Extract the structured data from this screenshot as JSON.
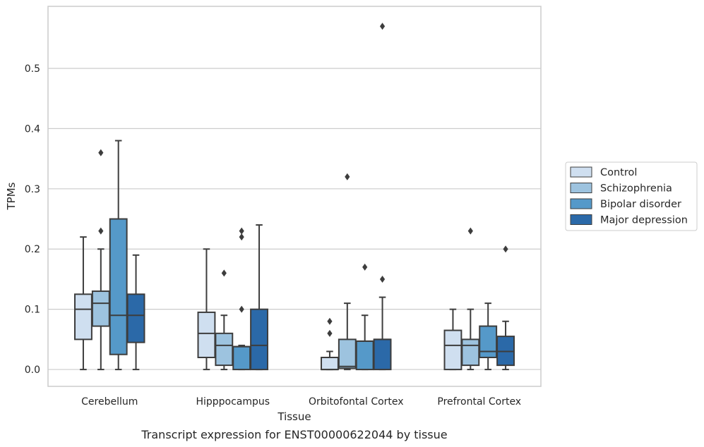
{
  "chart_data": {
    "type": "box",
    "xlabel": "Tissue",
    "ylabel": "TPMs",
    "caption": "Transcript expression for ENST00000622044 by tissue",
    "categories": [
      "Cerebellum",
      "Hipppocampus",
      "Orbitofontal Cortex",
      "Prefrontal Cortex"
    ],
    "ylim": [
      -0.028,
      0.603
    ],
    "yticks": [
      0.0,
      0.1,
      0.2,
      0.3,
      0.4,
      0.5
    ],
    "ytick_labels": [
      "0.0",
      "0.1",
      "0.2",
      "0.3",
      "0.4",
      "0.5"
    ],
    "grid": "horizontal",
    "legend_position": "right",
    "series": [
      {
        "name": "Control",
        "color": "#cfdff0",
        "boxes": [
          {
            "whislo": 0.0,
            "q1": 0.05,
            "med": 0.1,
            "q3": 0.125,
            "whishi": 0.22,
            "fliers": []
          },
          {
            "whislo": 0.0,
            "q1": 0.02,
            "med": 0.06,
            "q3": 0.095,
            "whishi": 0.2,
            "fliers": []
          },
          {
            "whislo": 0.0,
            "q1": 0.0,
            "med": 0.0,
            "q3": 0.02,
            "whishi": 0.03,
            "fliers": [
              0.06,
              0.08
            ]
          },
          {
            "whislo": 0.0,
            "q1": 0.0,
            "med": 0.04,
            "q3": 0.065,
            "whishi": 0.1,
            "fliers": []
          }
        ]
      },
      {
        "name": "Schizophrenia",
        "color": "#9dc3df",
        "boxes": [
          {
            "whislo": 0.0,
            "q1": 0.072,
            "med": 0.11,
            "q3": 0.13,
            "whishi": 0.2,
            "fliers": [
              0.23,
              0.36
            ]
          },
          {
            "whislo": 0.0,
            "q1": 0.007,
            "med": 0.04,
            "q3": 0.06,
            "whishi": 0.09,
            "fliers": [
              0.16
            ]
          },
          {
            "whislo": 0.0,
            "q1": 0.002,
            "med": 0.005,
            "q3": 0.05,
            "whishi": 0.11,
            "fliers": [
              0.32
            ]
          },
          {
            "whislo": 0.0,
            "q1": 0.007,
            "med": 0.04,
            "q3": 0.05,
            "whishi": 0.1,
            "fliers": [
              0.23
            ]
          }
        ]
      },
      {
        "name": "Bipolar disorder",
        "color": "#5599c9",
        "boxes": [
          {
            "whislo": 0.0,
            "q1": 0.025,
            "med": 0.09,
            "q3": 0.25,
            "whishi": 0.38,
            "fliers": []
          },
          {
            "whislo": 0.0,
            "q1": 0.0,
            "med": 0.038,
            "q3": 0.038,
            "whishi": 0.04,
            "fliers": [
              0.1,
              0.22,
              0.23
            ]
          },
          {
            "whislo": 0.0,
            "q1": 0.0,
            "med": 0.047,
            "q3": 0.047,
            "whishi": 0.09,
            "fliers": [
              0.17
            ]
          },
          {
            "whislo": 0.0,
            "q1": 0.02,
            "med": 0.03,
            "q3": 0.072,
            "whishi": 0.11,
            "fliers": []
          }
        ]
      },
      {
        "name": "Major depression",
        "color": "#2b69a8",
        "boxes": [
          {
            "whislo": 0.0,
            "q1": 0.045,
            "med": 0.09,
            "q3": 0.125,
            "whishi": 0.19,
            "fliers": []
          },
          {
            "whislo": 0.0,
            "q1": 0.0,
            "med": 0.04,
            "q3": 0.1,
            "whishi": 0.24,
            "fliers": []
          },
          {
            "whislo": 0.0,
            "q1": 0.0,
            "med": 0.05,
            "q3": 0.05,
            "whishi": 0.12,
            "fliers": [
              0.15,
              0.57
            ]
          },
          {
            "whislo": 0.0,
            "q1": 0.007,
            "med": 0.03,
            "q3": 0.055,
            "whishi": 0.08,
            "fliers": [
              0.2
            ]
          }
        ]
      }
    ]
  }
}
